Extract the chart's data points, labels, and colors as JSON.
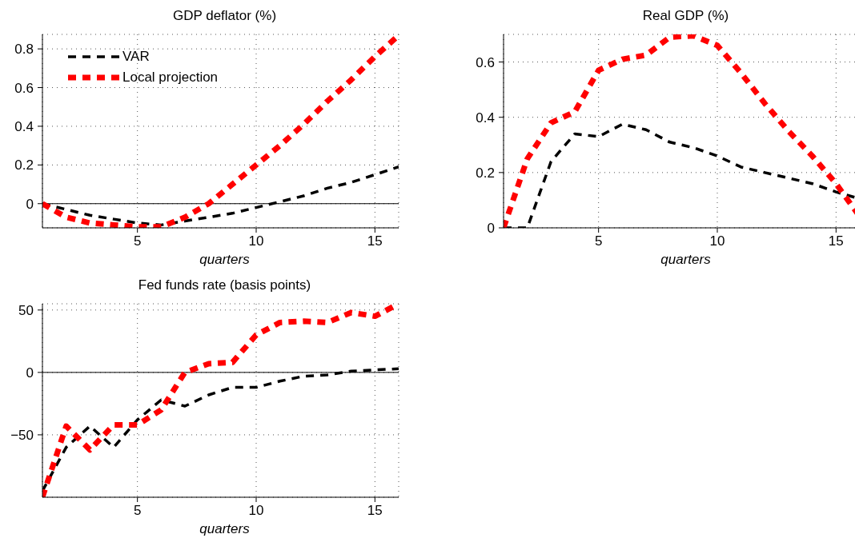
{
  "chart_data": [
    {
      "type": "line",
      "title": "GDP deflator (%)",
      "xlabel": "quarters",
      "x": [
        1,
        2,
        3,
        4,
        5,
        6,
        7,
        8,
        9,
        10,
        11,
        12,
        13,
        14,
        15,
        16
      ],
      "xlim": [
        1,
        16
      ],
      "xticks": [
        5,
        10,
        15
      ],
      "ylim": [
        -0.125,
        0.875
      ],
      "yticks": [
        0,
        0.2,
        0.4,
        0.6,
        0.8
      ],
      "grid": true,
      "legend": "top left",
      "ref_lines": [
        {
          "axis": "y",
          "value": 0,
          "color": "#000000",
          "line_style": "solid"
        }
      ],
      "series": [
        {
          "name": "VAR",
          "color": "#000000",
          "line_style": "dashed",
          "values": [
            0,
            -0.03,
            -0.06,
            -0.08,
            -0.1,
            -0.11,
            -0.09,
            -0.07,
            -0.05,
            -0.02,
            0.01,
            0.04,
            0.08,
            0.11,
            0.15,
            0.19
          ]
        },
        {
          "name": "Local projection",
          "color": "#ff0000",
          "line_style": "dashed",
          "values": [
            0,
            -0.07,
            -0.1,
            -0.11,
            -0.12,
            -0.12,
            -0.07,
            0,
            0.1,
            0.2,
            0.3,
            0.41,
            0.53,
            0.64,
            0.76,
            0.87
          ]
        }
      ]
    },
    {
      "type": "line",
      "title": "Real GDP (%)",
      "xlabel": "quarters",
      "x": [
        1,
        2,
        3,
        4,
        5,
        6,
        7,
        8,
        9,
        10,
        11,
        12,
        13,
        14,
        15,
        16
      ],
      "xlim": [
        1,
        16
      ],
      "xticks": [
        5,
        10,
        15
      ],
      "ylim": [
        0,
        0.7
      ],
      "yticks": [
        0,
        0.2,
        0.4,
        0.6
      ],
      "grid": true,
      "legend": false,
      "series": [
        {
          "color": "#000000",
          "line_style": "dashed",
          "values": [
            0,
            0,
            0.24,
            0.34,
            0.33,
            0.375,
            0.355,
            0.31,
            0.29,
            0.26,
            0.22,
            0.2,
            0.18,
            0.16,
            0.13,
            0.105
          ]
        },
        {
          "color": "#ff0000",
          "line_style": "dashed",
          "values": [
            0,
            0.25,
            0.38,
            0.42,
            0.57,
            0.61,
            0.625,
            0.69,
            0.695,
            0.66,
            0.56,
            0.45,
            0.35,
            0.26,
            0.16,
            0.04
          ]
        }
      ]
    },
    {
      "type": "line",
      "title": "Fed funds rate (basis points)",
      "xlabel": "quarters",
      "x": [
        1,
        2,
        3,
        4,
        5,
        6,
        7,
        8,
        9,
        10,
        11,
        12,
        13,
        14,
        15,
        16
      ],
      "xlim": [
        1,
        16
      ],
      "xticks": [
        5,
        10,
        15
      ],
      "ylim": [
        -100,
        55
      ],
      "yticks": [
        {
          "value": -50,
          "label": "−50"
        },
        0,
        50
      ],
      "grid": true,
      "legend": false,
      "ref_lines": [
        {
          "axis": "y",
          "value": 0,
          "color": "#000000",
          "line_style": "solid"
        }
      ],
      "series": [
        {
          "color": "#000000",
          "line_style": "dashed",
          "values": [
            -95,
            -60,
            -43,
            -60,
            -38,
            -22,
            -27,
            -18,
            -12,
            -12,
            -7,
            -3,
            -2,
            1,
            2,
            3
          ]
        },
        {
          "color": "#ff0000",
          "line_style": "dashed",
          "values": [
            -100,
            -43,
            -62,
            -42,
            -42,
            -30,
            0,
            7,
            8,
            30,
            40,
            41,
            40,
            48,
            45,
            55
          ]
        }
      ]
    }
  ]
}
